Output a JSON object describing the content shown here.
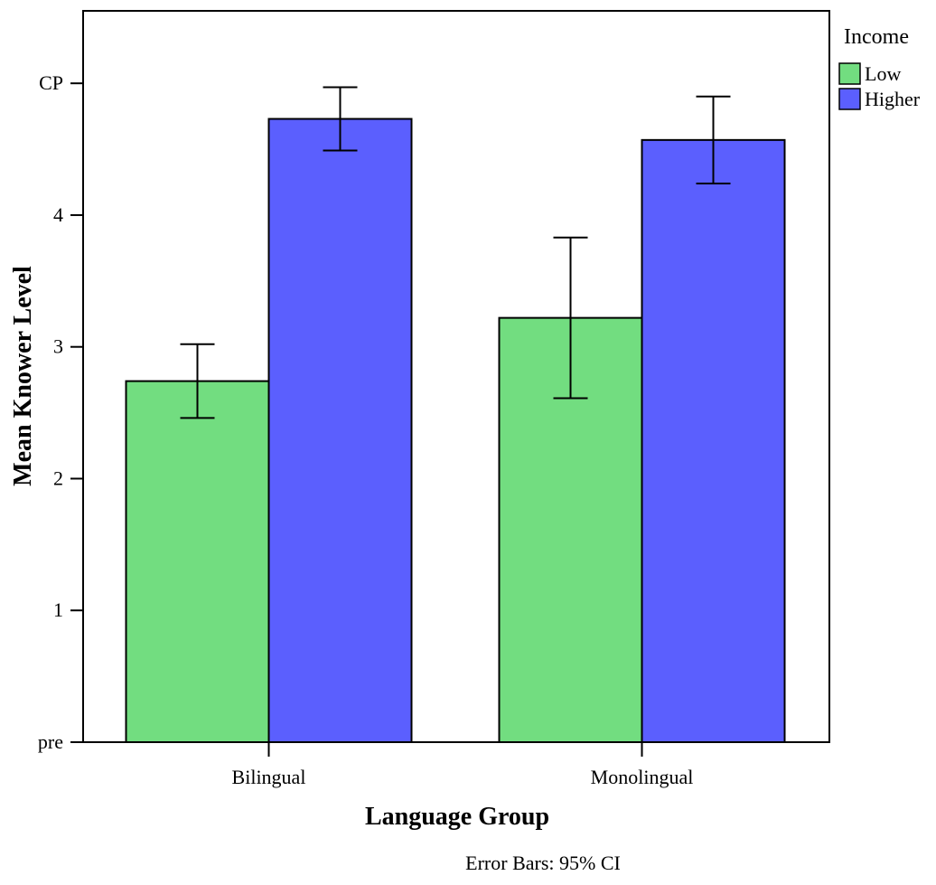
{
  "chart_data": {
    "type": "bar",
    "xlabel": "Language Group",
    "ylabel": "Mean Knower Level",
    "categories": [
      "Bilingual",
      "Monolingual"
    ],
    "y_ticks": [
      {
        "value": 0,
        "label": "pre"
      },
      {
        "value": 1,
        "label": "1"
      },
      {
        "value": 2,
        "label": "2"
      },
      {
        "value": 3,
        "label": "3"
      },
      {
        "value": 4,
        "label": "4"
      },
      {
        "value": 5,
        "label": "CP"
      }
    ],
    "ylim": [
      0,
      5.55
    ],
    "legend": {
      "title": "Income",
      "placement": "right"
    },
    "series": [
      {
        "name": "Low",
        "color": "#72dd80",
        "values": [
          2.74,
          3.22
        ],
        "ci_low": [
          2.46,
          2.61
        ],
        "ci_high": [
          3.02,
          3.83
        ]
      },
      {
        "name": "Higher",
        "color": "#5b5ffe",
        "values": [
          4.73,
          4.57
        ],
        "ci_low": [
          4.49,
          4.24
        ],
        "ci_high": [
          4.97,
          4.9
        ]
      }
    ],
    "note": "Error Bars: 95% CI",
    "grid": false
  }
}
